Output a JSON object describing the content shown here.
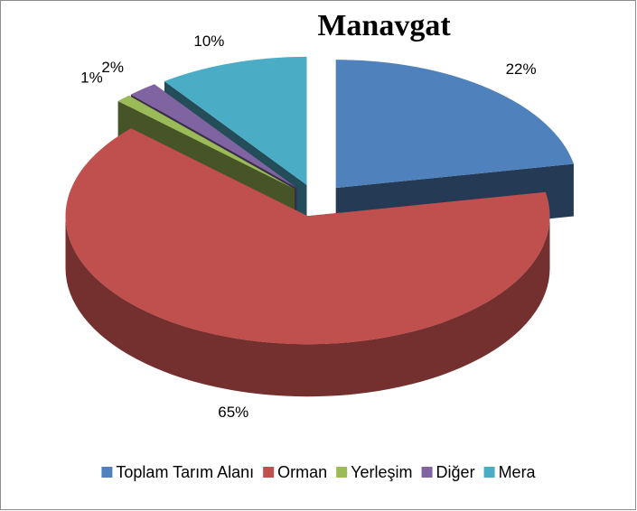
{
  "chart_data": {
    "type": "pie3d",
    "title": "Manavgat",
    "series": [
      {
        "name": "Toplam Tarım Alanı",
        "color": "#4f81bd",
        "values": [
          22
        ],
        "value_labels": [
          "22%"
        ]
      },
      {
        "name": "Orman",
        "color": "#c0504d",
        "values": [
          65
        ],
        "value_labels": [
          "65%"
        ]
      },
      {
        "name": "Yerleşim",
        "color": "#9bbb59",
        "values": [
          1
        ],
        "value_labels": [
          "1%"
        ]
      },
      {
        "name": "Diğer",
        "color": "#8064a2",
        "values": [
          2
        ],
        "value_labels": [
          "2%"
        ]
      },
      {
        "name": "Mera",
        "color": "#4bacc6",
        "values": [
          10
        ],
        "value_labels": [
          "10%"
        ]
      }
    ],
    "legend": "bottom"
  }
}
